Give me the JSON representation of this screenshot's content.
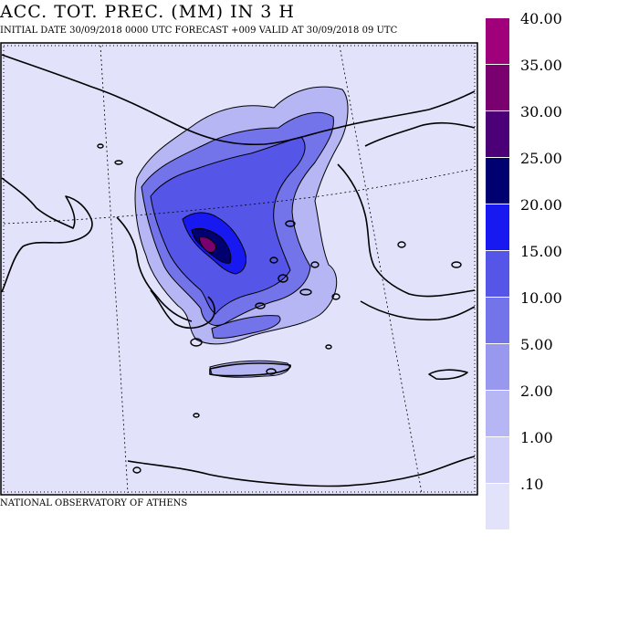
{
  "header": {
    "title": "ACC. TOT. PREC. (MM) IN 3 H",
    "subtitle": "INITIAL DATE 30/09/2018   0000 UTC  FORECAST +009 VALID AT  30/09/2018  09 UTC"
  },
  "footer": {
    "credit": "NATIONAL OBSERVATORY OF ATHENS"
  },
  "legend": {
    "labels": [
      "40.00",
      "35.00",
      "30.00",
      "25.00",
      "20.00",
      "15.00",
      "10.00",
      "5.00",
      "2.00",
      "1.00",
      ".10"
    ],
    "colors": [
      "#a0007a",
      "#7a0070",
      "#4b0078",
      "#000070",
      "#1818f0",
      "#5555e8",
      "#7474ea",
      "#9898ee",
      "#b6b6f4",
      "#d0d0f8",
      "#e2e2fa"
    ]
  },
  "map": {
    "background_color": "#e2e2fa",
    "region": "Greece, Aegean Sea and western Turkey",
    "peak_precipitation_class": "35.00"
  }
}
